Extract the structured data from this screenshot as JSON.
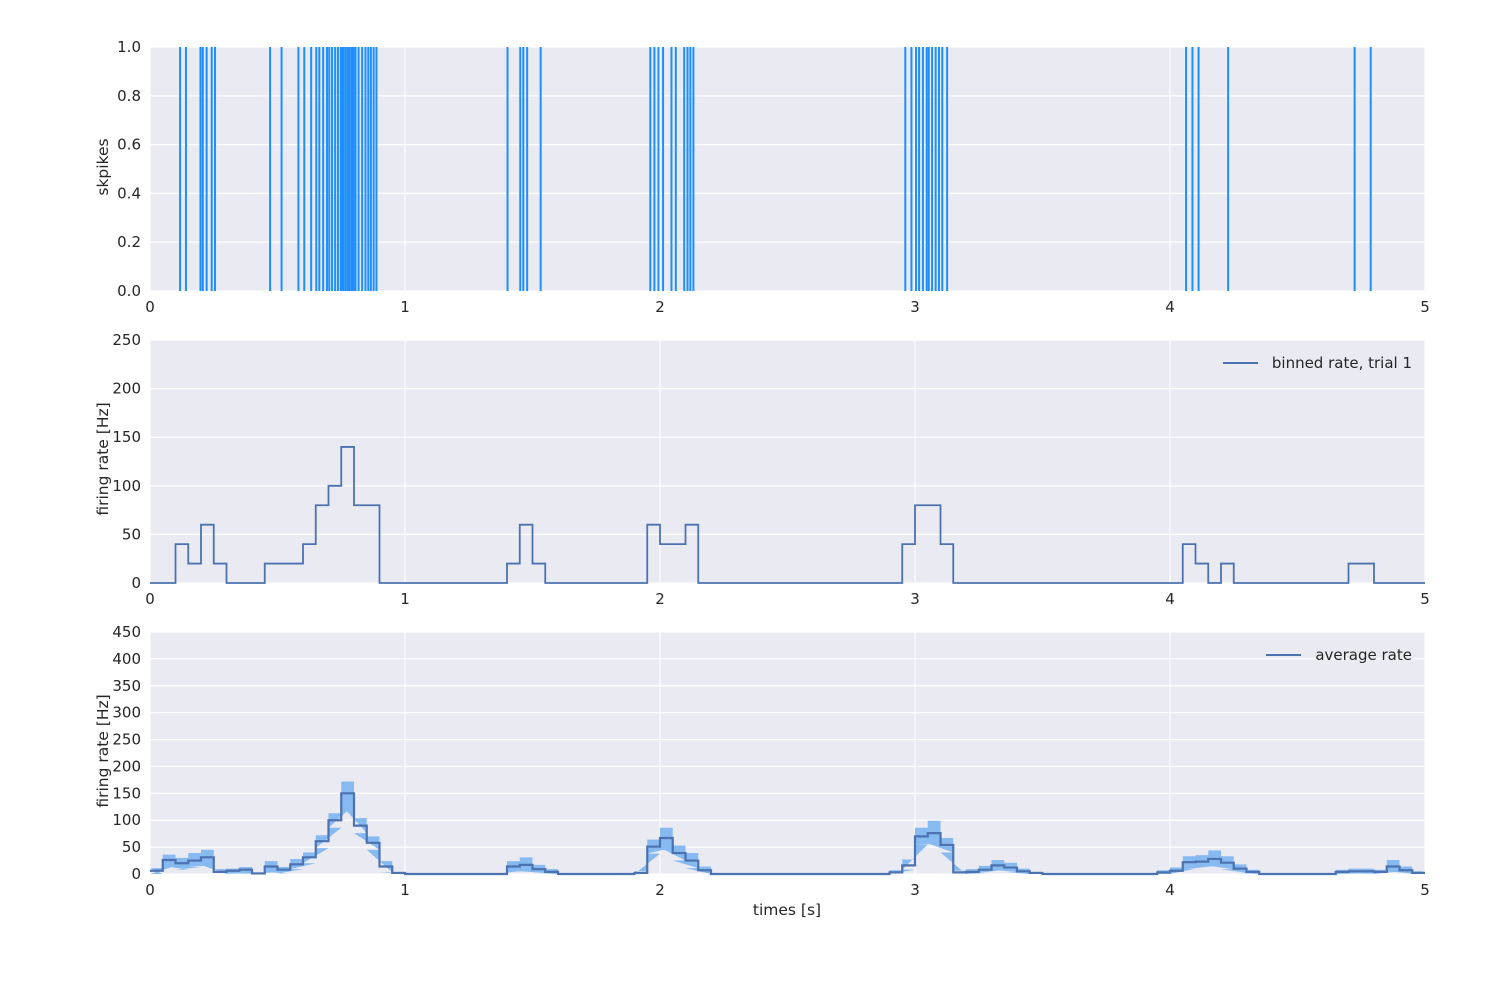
{
  "figure": {
    "background": "#ffffff"
  },
  "colors": {
    "axes_background": "#eaeaf2",
    "grid": "#ffffff",
    "spike": "#1e8ffe",
    "line": "#4c72b0",
    "band": "#87baf1",
    "text": "#262626"
  },
  "xlabel": "times [s]",
  "chart_data": [
    {
      "type": "event-raster",
      "name": "spike-raster",
      "ylabel": "skpikes",
      "xlim": [
        0,
        5
      ],
      "ylim": [
        0,
        1
      ],
      "xticks": [
        0,
        1,
        2,
        3,
        4,
        5
      ],
      "xtick_labels": [
        "0",
        "1",
        "2",
        "3",
        "4",
        "5"
      ],
      "yticks": [
        0,
        0.2,
        0.4,
        0.6,
        0.8,
        1.0
      ],
      "ytick_labels": [
        "0.0",
        "0.2",
        "0.4",
        "0.6",
        "0.8",
        "1.0"
      ],
      "grid": true,
      "legend": null,
      "spike_times": [
        0.118,
        0.141,
        0.198,
        0.207,
        0.222,
        0.242,
        0.255,
        0.471,
        0.516,
        0.582,
        0.605,
        0.632,
        0.652,
        0.664,
        0.679,
        0.694,
        0.703,
        0.714,
        0.726,
        0.737,
        0.748,
        0.753,
        0.76,
        0.768,
        0.776,
        0.783,
        0.791,
        0.798,
        0.806,
        0.818,
        0.832,
        0.845,
        0.856,
        0.866,
        0.877,
        0.888,
        1.402,
        1.452,
        1.464,
        1.479,
        1.532,
        1.962,
        1.978,
        1.994,
        2.012,
        2.045,
        2.062,
        2.095,
        2.108,
        2.119,
        2.131,
        2.962,
        2.986,
        3.004,
        3.016,
        3.031,
        3.046,
        3.054,
        3.067,
        3.081,
        3.094,
        3.107,
        3.126,
        4.063,
        4.088,
        4.112,
        4.228,
        4.724,
        4.787
      ]
    },
    {
      "type": "step-line",
      "name": "binned-rate",
      "legend": "binned rate, trial 1",
      "legend_position": "upper right",
      "ylabel": "firing rate [Hz]",
      "xlim": [
        0,
        5
      ],
      "ylim": [
        0,
        250
      ],
      "xticks": [
        0,
        1,
        2,
        3,
        4,
        5
      ],
      "xtick_labels": [
        "0",
        "1",
        "2",
        "3",
        "4",
        "5"
      ],
      "yticks": [
        0,
        50,
        100,
        150,
        200,
        250
      ],
      "ytick_labels": [
        "0",
        "50",
        "100",
        "150",
        "200",
        "250"
      ],
      "grid": true,
      "bin_width": 0.05,
      "bins_hz_nonzero": [
        [
          0.1,
          40
        ],
        [
          0.15,
          20
        ],
        [
          0.2,
          60
        ],
        [
          0.25,
          20
        ],
        [
          0.45,
          20
        ],
        [
          0.5,
          20
        ],
        [
          0.55,
          20
        ],
        [
          0.6,
          40
        ],
        [
          0.65,
          80
        ],
        [
          0.7,
          100
        ],
        [
          0.75,
          140
        ],
        [
          0.8,
          80
        ],
        [
          0.85,
          80
        ],
        [
          1.4,
          20
        ],
        [
          1.45,
          60
        ],
        [
          1.5,
          20
        ],
        [
          1.95,
          60
        ],
        [
          2.0,
          40
        ],
        [
          2.05,
          40
        ],
        [
          2.1,
          60
        ],
        [
          2.95,
          40
        ],
        [
          3.0,
          80
        ],
        [
          3.05,
          80
        ],
        [
          3.1,
          40
        ],
        [
          4.05,
          40
        ],
        [
          4.1,
          20
        ],
        [
          4.2,
          20
        ],
        [
          4.7,
          20
        ],
        [
          4.75,
          20
        ]
      ]
    },
    {
      "type": "step-line-band",
      "name": "average-rate",
      "legend": "average rate",
      "legend_position": "upper right",
      "ylabel": "firing rate [Hz]",
      "xlim": [
        0,
        5
      ],
      "ylim": [
        0,
        450
      ],
      "xticks": [
        0,
        1,
        2,
        3,
        4,
        5
      ],
      "xtick_labels": [
        "0",
        "1",
        "2",
        "3",
        "4",
        "5"
      ],
      "yticks": [
        0,
        50,
        100,
        150,
        200,
        250,
        300,
        350,
        400,
        450
      ],
      "ytick_labels": [
        "0",
        "50",
        "100",
        "150",
        "200",
        "250",
        "300",
        "350",
        "400",
        "450"
      ],
      "grid": true,
      "bin_width": 0.05,
      "bins_mean_lo_hi_nonzero": [
        [
          0.0,
          6,
          0,
          11
        ],
        [
          0.05,
          26,
          15,
          36
        ],
        [
          0.1,
          20,
          8,
          30
        ],
        [
          0.15,
          25,
          13,
          39
        ],
        [
          0.2,
          31,
          17,
          45
        ],
        [
          0.25,
          4,
          0,
          9
        ],
        [
          0.3,
          6,
          1,
          10
        ],
        [
          0.35,
          8,
          1,
          13
        ],
        [
          0.4,
          1,
          0,
          3
        ],
        [
          0.45,
          14,
          4,
          24
        ],
        [
          0.5,
          8,
          1,
          13
        ],
        [
          0.55,
          18,
          9,
          28
        ],
        [
          0.6,
          31,
          20,
          40
        ],
        [
          0.65,
          61,
          48,
          72
        ],
        [
          0.7,
          100,
          86,
          113
        ],
        [
          0.75,
          150,
          128,
          172
        ],
        [
          0.8,
          90,
          76,
          104
        ],
        [
          0.85,
          58,
          45,
          70
        ],
        [
          0.9,
          14,
          3,
          24
        ],
        [
          0.95,
          2,
          0,
          4
        ],
        [
          1.4,
          14,
          5,
          24
        ],
        [
          1.45,
          17,
          5,
          31
        ],
        [
          1.5,
          9,
          2,
          17
        ],
        [
          1.55,
          4,
          0,
          9
        ],
        [
          1.9,
          2,
          0,
          5
        ],
        [
          1.95,
          51,
          38,
          64
        ],
        [
          2.0,
          67,
          49,
          86
        ],
        [
          2.05,
          39,
          25,
          53
        ],
        [
          2.1,
          25,
          11,
          39
        ],
        [
          2.15,
          7,
          0,
          14
        ],
        [
          2.9,
          3,
          0,
          7
        ],
        [
          2.95,
          16,
          8,
          27
        ],
        [
          3.0,
          70,
          55,
          86
        ],
        [
          3.05,
          76,
          57,
          99
        ],
        [
          3.1,
          54,
          40,
          67
        ],
        [
          3.15,
          3,
          0,
          6
        ],
        [
          3.2,
          4,
          0,
          9
        ],
        [
          3.25,
          8,
          2,
          15
        ],
        [
          3.3,
          16,
          8,
          26
        ],
        [
          3.35,
          12,
          4,
          21
        ],
        [
          3.4,
          5,
          0,
          10
        ],
        [
          3.45,
          2,
          0,
          4
        ],
        [
          3.95,
          3,
          0,
          7
        ],
        [
          4.0,
          6,
          0,
          12
        ],
        [
          4.05,
          22,
          10,
          33
        ],
        [
          4.1,
          23,
          12,
          35
        ],
        [
          4.15,
          28,
          15,
          44
        ],
        [
          4.2,
          21,
          9,
          33
        ],
        [
          4.25,
          10,
          2,
          18
        ],
        [
          4.3,
          4,
          0,
          8
        ],
        [
          4.65,
          4,
          0,
          8
        ],
        [
          4.7,
          5,
          1,
          10
        ],
        [
          4.75,
          5,
          1,
          10
        ],
        [
          4.8,
          4,
          0,
          8
        ],
        [
          4.85,
          14,
          5,
          26
        ],
        [
          4.9,
          7,
          1,
          14
        ],
        [
          4.95,
          2,
          0,
          5
        ]
      ]
    }
  ]
}
